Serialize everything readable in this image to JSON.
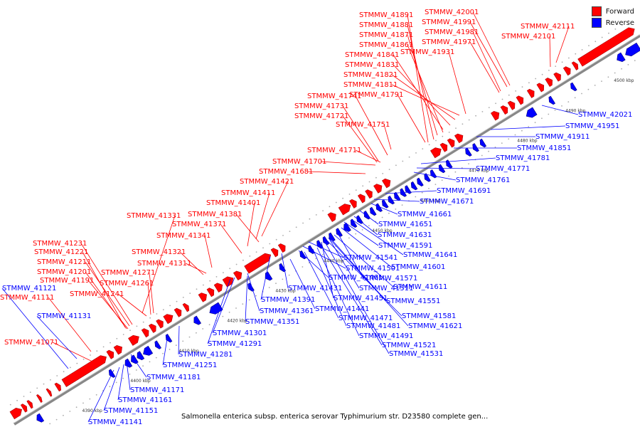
{
  "legend": {
    "forward_label": "Forward",
    "reverse_label": "Reverse",
    "forward_color": "#ff0000",
    "reverse_color": "#0000ff"
  },
  "caption": "Salmonella enterica subsp. enterica serovar Typhimurium str. D23580 complete gen...",
  "axis_ticks": [
    "4390 kbp",
    "4400 kbp",
    "4410 kbp",
    "4420 kbp",
    "4430 kbp",
    "4440 kbp",
    "4450 kbp",
    "4460 kbp",
    "4470 kbp",
    "4480 kbp",
    "4490 kbp",
    "4500 kbp",
    "4510 kbp"
  ],
  "forward_labels": [
    "STMMW_41891",
    "STMMW_41881",
    "STMMW_41871",
    "STMMW_41861",
    "STMMW_41841",
    "STMMW_41831",
    "STMMW_41821",
    "STMMW_41811",
    "STMMW_41791",
    "STMMW_42001",
    "STMMW_41991",
    "STMMW_41981",
    "STMMW_41971",
    "STMMW_41931",
    "STMMW_42111",
    "STMMW_42101",
    "STMMW_41741",
    "STMMW_41731",
    "STMMW_41721",
    "STMMW_41751",
    "STMMW_41711",
    "STMMW_41701",
    "STMMW_41681",
    "STMMW_41421",
    "STMMW_41411",
    "STMMW_41401",
    "STMMW_41331",
    "STMMW_41381",
    "STMMW_41371",
    "STMMW_41341",
    "STMMW_41231",
    "STMMW_41221",
    "STMMW_41211",
    "STMMW_41201",
    "STMMW_41191",
    "STMMW_41111",
    "STMMW_41321",
    "STMMW_41311",
    "STMMW_41271",
    "STMMW_41261",
    "STMMW_41241",
    "STMMW_41071"
  ],
  "reverse_labels": [
    "STMMW_42021",
    "STMMW_41951",
    "STMMW_41911",
    "STMMW_41851",
    "STMMW_41781",
    "STMMW_41771",
    "STMMW_41761",
    "STMMW_41691",
    "STMMW_41671",
    "STMMW_41661",
    "STMMW_41651",
    "STMMW_41631",
    "STMMW_41591",
    "STMMW_41641",
    "STMMW_41541",
    "STMMW_41601",
    "STMMW_41501",
    "STMMW_41571",
    "STMMW_41461",
    "STMMW_41611",
    "STMMW_41511",
    "STMMW_41431",
    "STMMW_41391",
    "STMMW_41451",
    "STMMW_41551",
    "STMMW_41441",
    "STMMW_41581",
    "STMMW_41471",
    "STMMW_41621",
    "STMMW_41481",
    "STMMW_41491",
    "STMMW_41521",
    "STMMW_41531",
    "STMMW_41361",
    "STMMW_41351",
    "STMMW_41301",
    "STMMW_41291",
    "STMMW_41281",
    "STMMW_41251",
    "STMMW_41181",
    "STMMW_41171",
    "STMMW_41161",
    "STMMW_41151",
    "STMMW_41141",
    "STMMW_41121",
    "STMMW_41131"
  ]
}
